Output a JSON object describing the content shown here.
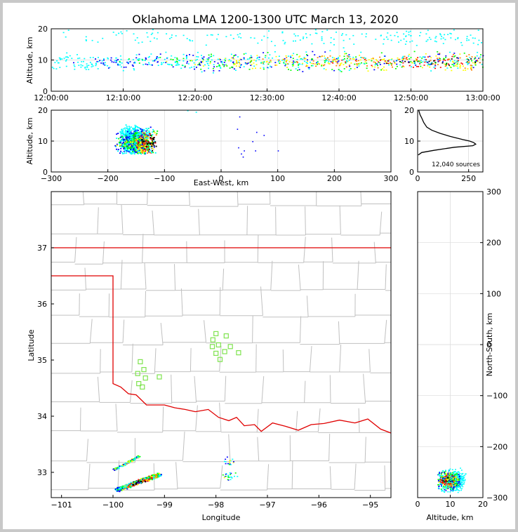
{
  "title": "Oklahoma LMA 1200-1300 UTC March 13, 2020",
  "colors": {
    "state_border": "#e00000",
    "county_lines": "#c0c0c0",
    "stations": "#7fe34f",
    "density_ramp": [
      "#00ffff",
      "#0000ff",
      "#00ff00",
      "#ffff00",
      "#ff8000",
      "#ff0000",
      "#000000"
    ]
  },
  "chart_data": [
    {
      "id": "time-height",
      "type": "scatter",
      "ylabel": "Altitude, km",
      "ylim": [
        0,
        20
      ],
      "yticks": [
        "0",
        "10",
        "20"
      ],
      "xticks": [
        "12:00:00",
        "12:10:00",
        "12:20:00",
        "12:30:00",
        "12:40:00",
        "12:50:00",
        "13:00:00"
      ],
      "grid": true
    },
    {
      "id": "ew-height",
      "type": "scatter",
      "xlabel": "East-West, km",
      "ylabel": "Altitude, km",
      "xlim": [
        -300,
        300
      ],
      "ylim": [
        0,
        20
      ],
      "xticks": [
        "−300",
        "−200",
        "−100",
        "0",
        "100",
        "200",
        "300"
      ],
      "yticks": [
        "0",
        "10",
        "20"
      ],
      "grid": true
    },
    {
      "id": "altitude-histogram",
      "type": "line",
      "xlim": [
        0,
        320
      ],
      "ylim": [
        0,
        20
      ],
      "xticks": [
        "0",
        "250"
      ],
      "yticks": [
        "0",
        "10",
        "20"
      ],
      "annotation": "12,040 sources",
      "profile": [
        {
          "count": 5,
          "alt": 20
        },
        {
          "count": 12,
          "alt": 18.5
        },
        {
          "count": 20,
          "alt": 17.5
        },
        {
          "count": 30,
          "alt": 16
        },
        {
          "count": 45,
          "alt": 14.5
        },
        {
          "count": 70,
          "alt": 13.5
        },
        {
          "count": 110,
          "alt": 12.5
        },
        {
          "count": 160,
          "alt": 11.5
        },
        {
          "count": 220,
          "alt": 10.5
        },
        {
          "count": 255,
          "alt": 10
        },
        {
          "count": 275,
          "alt": 9.5
        },
        {
          "count": 285,
          "alt": 9
        },
        {
          "count": 270,
          "alt": 8.5
        },
        {
          "count": 180,
          "alt": 8
        },
        {
          "count": 80,
          "alt": 7
        },
        {
          "count": 20,
          "alt": 6.3
        },
        {
          "count": 3,
          "alt": 5.5
        }
      ]
    },
    {
      "id": "plan-view",
      "type": "scatter",
      "xlabel": "Longitude",
      "ylabel": "Latitude",
      "xlim": [
        -101.2,
        -94.6
      ],
      "ylim": [
        32.55,
        38.0
      ],
      "xticks": [
        {
          "v": -101,
          "t": "−101"
        },
        {
          "v": -100,
          "t": "−100"
        },
        {
          "v": -99,
          "t": "−99"
        },
        {
          "v": -98,
          "t": "−98"
        },
        {
          "v": -97,
          "t": "−97"
        },
        {
          "v": -96,
          "t": "−96"
        },
        {
          "v": -95,
          "t": "−95"
        }
      ],
      "yticks": [
        {
          "v": 33,
          "t": "33"
        },
        {
          "v": 34,
          "t": "34"
        },
        {
          "v": 35,
          "t": "35"
        },
        {
          "v": 36,
          "t": "36"
        },
        {
          "v": 37,
          "t": "37"
        }
      ],
      "stations": [
        [
          -99.47,
          34.97
        ],
        [
          -99.4,
          34.83
        ],
        [
          -99.52,
          34.76
        ],
        [
          -99.37,
          34.68
        ],
        [
          -99.5,
          34.58
        ],
        [
          -99.43,
          34.52
        ],
        [
          -99.1,
          34.7
        ],
        [
          -98.0,
          35.47
        ],
        [
          -97.8,
          35.43
        ],
        [
          -98.06,
          35.36
        ],
        [
          -98.07,
          35.24
        ],
        [
          -97.95,
          35.27
        ],
        [
          -97.72,
          35.24
        ],
        [
          -97.83,
          35.15
        ],
        [
          -98.0,
          35.12
        ],
        [
          -97.56,
          35.13
        ],
        [
          -97.92,
          35.01
        ]
      ]
    },
    {
      "id": "ns-height",
      "type": "scatter",
      "xlabel": "Altitude, km",
      "ylabel": "North-South, km",
      "xlim": [
        0,
        20
      ],
      "ylim": [
        -300,
        300
      ],
      "xticks": [
        "0",
        "10",
        "20"
      ],
      "yticks": [
        "−300",
        "−200",
        "−100",
        "0",
        "100",
        "200",
        "300"
      ],
      "grid": true
    }
  ]
}
